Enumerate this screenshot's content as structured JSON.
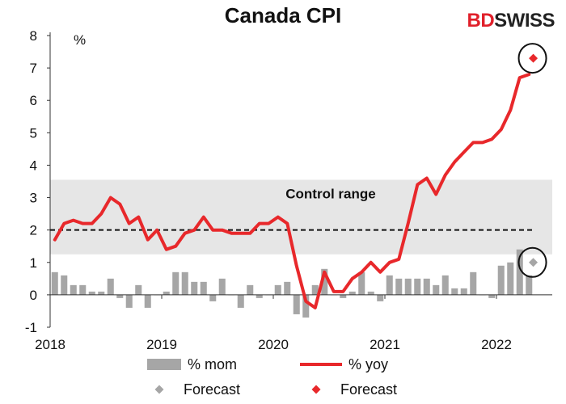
{
  "logo": {
    "bd": "BD",
    "swiss": "SWISS"
  },
  "chart_data": {
    "type": "bar+line",
    "title": "Canada CPI",
    "ylabel": "%",
    "ylim": [
      -1,
      8
    ],
    "yticks": [
      -1,
      0,
      1,
      2,
      3,
      4,
      5,
      6,
      7,
      8
    ],
    "x_tick_labels": [
      "2018",
      "2019",
      "2020",
      "2021",
      "2022"
    ],
    "x_range_years": [
      2018.0,
      2022.5
    ],
    "control_range": {
      "label": "Control range",
      "low": 1.25,
      "high": 3.55,
      "color": "#e6e6e6"
    },
    "target_line": {
      "value": 2,
      "style": "dashed"
    },
    "legend_placement": "bottom",
    "series": [
      {
        "name": "% mom",
        "kind": "bar",
        "color": "#a6a6a6",
        "start_year": 2018.0,
        "values": [
          0.7,
          0.6,
          0.3,
          0.3,
          0.1,
          0.1,
          0.5,
          -0.1,
          -0.4,
          0.3,
          -0.4,
          0,
          0.1,
          0.7,
          0.7,
          0.4,
          0.4,
          -0.2,
          0.5,
          0,
          -0.4,
          0.3,
          -0.1,
          0,
          0.3,
          0.4,
          -0.6,
          -0.7,
          0.3,
          0.8,
          0,
          -0.1,
          0.1,
          0.7,
          0.1,
          -0.2,
          0.6,
          0.5,
          0.5,
          0.5,
          0.5,
          0.3,
          0.6,
          0.2,
          0.2,
          0.7,
          0,
          -0.1,
          0.9,
          1.0,
          1.4,
          0.6
        ]
      },
      {
        "name": "% yoy",
        "kind": "line",
        "color": "#e8282b",
        "start_year": 2018.0,
        "values": [
          1.7,
          2.2,
          2.3,
          2.2,
          2.2,
          2.5,
          3.0,
          2.8,
          2.2,
          2.4,
          1.7,
          2.0,
          1.4,
          1.5,
          1.9,
          2.0,
          2.4,
          2.0,
          2.0,
          1.9,
          1.9,
          1.9,
          2.2,
          2.2,
          2.4,
          2.2,
          0.9,
          -0.2,
          -0.4,
          0.7,
          0.1,
          0.1,
          0.5,
          0.7,
          1.0,
          0.7,
          1.0,
          1.1,
          2.2,
          3.4,
          3.6,
          3.1,
          3.7,
          4.1,
          4.4,
          4.7,
          4.7,
          4.8,
          5.1,
          5.7,
          6.7,
          6.8
        ]
      }
    ],
    "forecasts": [
      {
        "name": "Forecast",
        "series": "% mom",
        "year": 2022.33,
        "value": 1.0,
        "color": "#a6a6a6",
        "marker": "diamond",
        "circled": true
      },
      {
        "name": "Forecast",
        "series": "% yoy",
        "year": 2022.33,
        "value": 7.3,
        "color": "#e8282b",
        "marker": "diamond",
        "circled": true
      }
    ]
  }
}
